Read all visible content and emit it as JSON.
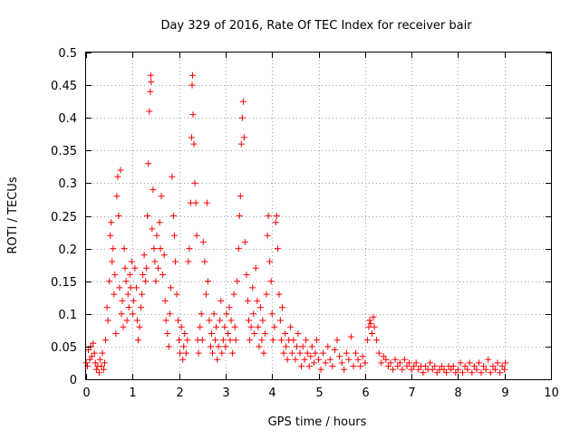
{
  "chart_data": {
    "type": "scatter",
    "title": "Day 329 of 2016, Rate Of TEC Index for receiver bair",
    "xlabel": "GPS time / hours",
    "ylabel": "ROTI / TECUs",
    "xlim": [
      0,
      10
    ],
    "ylim": [
      0,
      0.5
    ],
    "xticks": [
      0,
      1,
      2,
      3,
      4,
      5,
      6,
      7,
      8,
      9,
      10
    ],
    "yticks": [
      0,
      0.05,
      0.1,
      0.15,
      0.2,
      0.25,
      0.3,
      0.35,
      0.4,
      0.45,
      0.5
    ],
    "xtick_labels": [
      "0",
      "1",
      "2",
      "3",
      "4",
      "5",
      "6",
      "7",
      "8",
      "9",
      "10"
    ],
    "ytick_labels": [
      "0",
      "0.05",
      "0.1",
      "0.15",
      "0.2",
      "0.25",
      "0.3",
      "0.35",
      "0.4",
      "0.45",
      "0.5"
    ],
    "grid": true,
    "marker": "plus",
    "series": [
      {
        "name": "ROTI",
        "color": "#ff0000",
        "points": [
          [
            0.0,
            0.025
          ],
          [
            0.03,
            0.02
          ],
          [
            0.05,
            0.045
          ],
          [
            0.08,
            0.03
          ],
          [
            0.1,
            0.05
          ],
          [
            0.12,
            0.035
          ],
          [
            0.15,
            0.055
          ],
          [
            0.18,
            0.04
          ],
          [
            0.2,
            0.025
          ],
          [
            0.22,
            0.015
          ],
          [
            0.25,
            0.02
          ],
          [
            0.28,
            0.01
          ],
          [
            0.3,
            0.03
          ],
          [
            0.33,
            0.02
          ],
          [
            0.35,
            0.04
          ],
          [
            0.38,
            0.015
          ],
          [
            0.4,
            0.025
          ],
          [
            0.42,
            0.06
          ],
          [
            0.45,
            0.11
          ],
          [
            0.47,
            0.09
          ],
          [
            0.5,
            0.15
          ],
          [
            0.52,
            0.22
          ],
          [
            0.54,
            0.24
          ],
          [
            0.56,
            0.18
          ],
          [
            0.58,
            0.2
          ],
          [
            0.6,
            0.13
          ],
          [
            0.62,
            0.16
          ],
          [
            0.64,
            0.07
          ],
          [
            0.66,
            0.28
          ],
          [
            0.68,
            0.31
          ],
          [
            0.7,
            0.25
          ],
          [
            0.72,
            0.14
          ],
          [
            0.74,
            0.32
          ],
          [
            0.76,
            0.1
          ],
          [
            0.78,
            0.12
          ],
          [
            0.8,
            0.08
          ],
          [
            0.82,
            0.2
          ],
          [
            0.84,
            0.17
          ],
          [
            0.86,
            0.15
          ],
          [
            0.88,
            0.09
          ],
          [
            0.9,
            0.13
          ],
          [
            0.92,
            0.11
          ],
          [
            0.94,
            0.16
          ],
          [
            0.96,
            0.14
          ],
          [
            0.98,
            0.18
          ],
          [
            1.0,
            0.1
          ],
          [
            1.02,
            0.12
          ],
          [
            1.05,
            0.17
          ],
          [
            1.08,
            0.14
          ],
          [
            1.1,
            0.09
          ],
          [
            1.12,
            0.06
          ],
          [
            1.15,
            0.08
          ],
          [
            1.18,
            0.11
          ],
          [
            1.2,
            0.13
          ],
          [
            1.22,
            0.16
          ],
          [
            1.25,
            0.19
          ],
          [
            1.28,
            0.15
          ],
          [
            1.3,
            0.17
          ],
          [
            1.32,
            0.25
          ],
          [
            1.34,
            0.33
          ],
          [
            1.36,
            0.41
          ],
          [
            1.38,
            0.44
          ],
          [
            1.39,
            0.465
          ],
          [
            1.4,
            0.455
          ],
          [
            1.42,
            0.23
          ],
          [
            1.44,
            0.29
          ],
          [
            1.46,
            0.2
          ],
          [
            1.48,
            0.18
          ],
          [
            1.5,
            0.15
          ],
          [
            1.52,
            0.22
          ],
          [
            1.55,
            0.17
          ],
          [
            1.58,
            0.24
          ],
          [
            1.6,
            0.2
          ],
          [
            1.62,
            0.28
          ],
          [
            1.65,
            0.16
          ],
          [
            1.68,
            0.19
          ],
          [
            1.7,
            0.12
          ],
          [
            1.72,
            0.09
          ],
          [
            1.75,
            0.07
          ],
          [
            1.78,
            0.05
          ],
          [
            1.8,
            0.1
          ],
          [
            1.82,
            0.14
          ],
          [
            1.85,
            0.31
          ],
          [
            1.88,
            0.25
          ],
          [
            1.9,
            0.22
          ],
          [
            1.92,
            0.18
          ],
          [
            1.95,
            0.13
          ],
          [
            1.98,
            0.09
          ],
          [
            2.0,
            0.06
          ],
          [
            2.02,
            0.04
          ],
          [
            2.05,
            0.08
          ],
          [
            2.08,
            0.03
          ],
          [
            2.1,
            0.05
          ],
          [
            2.12,
            0.07
          ],
          [
            2.15,
            0.04
          ],
          [
            2.18,
            0.06
          ],
          [
            2.2,
            0.18
          ],
          [
            2.22,
            0.2
          ],
          [
            2.25,
            0.27
          ],
          [
            2.27,
            0.37
          ],
          [
            2.28,
            0.45
          ],
          [
            2.29,
            0.465
          ],
          [
            2.3,
            0.405
          ],
          [
            2.32,
            0.36
          ],
          [
            2.34,
            0.3
          ],
          [
            2.36,
            0.27
          ],
          [
            2.38,
            0.22
          ],
          [
            2.4,
            0.06
          ],
          [
            2.42,
            0.04
          ],
          [
            2.45,
            0.08
          ],
          [
            2.48,
            0.1
          ],
          [
            2.5,
            0.06
          ],
          [
            2.52,
            0.21
          ],
          [
            2.55,
            0.18
          ],
          [
            2.58,
            0.13
          ],
          [
            2.6,
            0.27
          ],
          [
            2.62,
            0.15
          ],
          [
            2.65,
            0.09
          ],
          [
            2.68,
            0.05
          ],
          [
            2.7,
            0.07
          ],
          [
            2.72,
            0.04
          ],
          [
            2.75,
            0.1
          ],
          [
            2.78,
            0.06
          ],
          [
            2.8,
            0.08
          ],
          [
            2.82,
            0.03
          ],
          [
            2.85,
            0.05
          ],
          [
            2.88,
            0.09
          ],
          [
            2.9,
            0.12
          ],
          [
            2.92,
            0.04
          ],
          [
            2.95,
            0.06
          ],
          [
            2.98,
            0.08
          ],
          [
            3.0,
            0.05
          ],
          [
            3.02,
            0.1
          ],
          [
            3.05,
            0.07
          ],
          [
            3.08,
            0.11
          ],
          [
            3.1,
            0.06
          ],
          [
            3.12,
            0.09
          ],
          [
            3.15,
            0.04
          ],
          [
            3.18,
            0.13
          ],
          [
            3.2,
            0.08
          ],
          [
            3.22,
            0.06
          ],
          [
            3.25,
            0.15
          ],
          [
            3.28,
            0.2
          ],
          [
            3.3,
            0.25
          ],
          [
            3.32,
            0.28
          ],
          [
            3.34,
            0.36
          ],
          [
            3.36,
            0.4
          ],
          [
            3.38,
            0.425
          ],
          [
            3.4,
            0.37
          ],
          [
            3.42,
            0.21
          ],
          [
            3.45,
            0.16
          ],
          [
            3.48,
            0.12
          ],
          [
            3.5,
            0.09
          ],
          [
            3.52,
            0.06
          ],
          [
            3.55,
            0.08
          ],
          [
            3.58,
            0.14
          ],
          [
            3.6,
            0.1
          ],
          [
            3.62,
            0.07
          ],
          [
            3.65,
            0.17
          ],
          [
            3.68,
            0.12
          ],
          [
            3.7,
            0.08
          ],
          [
            3.72,
            0.05
          ],
          [
            3.75,
            0.11
          ],
          [
            3.78,
            0.06
          ],
          [
            3.8,
            0.09
          ],
          [
            3.82,
            0.04
          ],
          [
            3.85,
            0.07
          ],
          [
            3.88,
            0.13
          ],
          [
            3.9,
            0.22
          ],
          [
            3.92,
            0.25
          ],
          [
            3.95,
            0.18
          ],
          [
            3.98,
            0.15
          ],
          [
            4.0,
            0.1
          ],
          [
            4.02,
            0.06
          ],
          [
            4.05,
            0.08
          ],
          [
            4.08,
            0.24
          ],
          [
            4.1,
            0.25
          ],
          [
            4.12,
            0.2
          ],
          [
            4.15,
            0.13
          ],
          [
            4.18,
            0.09
          ],
          [
            4.2,
            0.06
          ],
          [
            4.22,
            0.11
          ],
          [
            4.25,
            0.04
          ],
          [
            4.28,
            0.07
          ],
          [
            4.3,
            0.05
          ],
          [
            4.33,
            0.03
          ],
          [
            4.36,
            0.06
          ],
          [
            4.4,
            0.08
          ],
          [
            4.43,
            0.04
          ],
          [
            4.46,
            0.06
          ],
          [
            4.5,
            0.03
          ],
          [
            4.53,
            0.05
          ],
          [
            4.56,
            0.07
          ],
          [
            4.6,
            0.04
          ],
          [
            4.63,
            0.02
          ],
          [
            4.66,
            0.05
          ],
          [
            4.7,
            0.03
          ],
          [
            4.73,
            0.06
          ],
          [
            4.76,
            0.04
          ],
          [
            4.8,
            0.02
          ],
          [
            4.83,
            0.035
          ],
          [
            4.86,
            0.05
          ],
          [
            4.9,
            0.025
          ],
          [
            4.93,
            0.04
          ],
          [
            4.96,
            0.06
          ],
          [
            5.0,
            0.03
          ],
          [
            5.05,
            0.015
          ],
          [
            5.1,
            0.04
          ],
          [
            5.15,
            0.025
          ],
          [
            5.2,
            0.05
          ],
          [
            5.25,
            0.03
          ],
          [
            5.3,
            0.02
          ],
          [
            5.35,
            0.045
          ],
          [
            5.4,
            0.06
          ],
          [
            5.45,
            0.035
          ],
          [
            5.5,
            0.025
          ],
          [
            5.55,
            0.015
          ],
          [
            5.6,
            0.04
          ],
          [
            5.65,
            0.03
          ],
          [
            5.7,
            0.065
          ],
          [
            5.75,
            0.02
          ],
          [
            5.8,
            0.04
          ],
          [
            5.85,
            0.03
          ],
          [
            5.9,
            0.02
          ],
          [
            5.95,
            0.035
          ],
          [
            6.0,
            0.025
          ],
          [
            6.05,
            0.06
          ],
          [
            6.08,
            0.08
          ],
          [
            6.1,
            0.09
          ],
          [
            6.12,
            0.085
          ],
          [
            6.15,
            0.07
          ],
          [
            6.18,
            0.095
          ],
          [
            6.2,
            0.08
          ],
          [
            6.25,
            0.06
          ],
          [
            6.3,
            0.04
          ],
          [
            6.35,
            0.025
          ],
          [
            6.4,
            0.035
          ],
          [
            6.45,
            0.03
          ],
          [
            6.5,
            0.02
          ],
          [
            6.55,
            0.025
          ],
          [
            6.6,
            0.015
          ],
          [
            6.65,
            0.03
          ],
          [
            6.7,
            0.02
          ],
          [
            6.75,
            0.025
          ],
          [
            6.8,
            0.015
          ],
          [
            6.85,
            0.03
          ],
          [
            6.9,
            0.02
          ],
          [
            6.95,
            0.025
          ],
          [
            7.0,
            0.015
          ],
          [
            7.05,
            0.02
          ],
          [
            7.1,
            0.025
          ],
          [
            7.15,
            0.015
          ],
          [
            7.2,
            0.02
          ],
          [
            7.25,
            0.01
          ],
          [
            7.3,
            0.02
          ],
          [
            7.35,
            0.015
          ],
          [
            7.4,
            0.025
          ],
          [
            7.45,
            0.015
          ],
          [
            7.5,
            0.02
          ],
          [
            7.55,
            0.01
          ],
          [
            7.6,
            0.015
          ],
          [
            7.65,
            0.02
          ],
          [
            7.7,
            0.015
          ],
          [
            7.75,
            0.01
          ],
          [
            7.8,
            0.02
          ],
          [
            7.85,
            0.015
          ],
          [
            7.9,
            0.02
          ],
          [
            7.95,
            0.01
          ],
          [
            8.0,
            0.015
          ],
          [
            8.05,
            0.025
          ],
          [
            8.1,
            0.01
          ],
          [
            8.15,
            0.02
          ],
          [
            8.2,
            0.015
          ],
          [
            8.25,
            0.025
          ],
          [
            8.3,
            0.01
          ],
          [
            8.35,
            0.02
          ],
          [
            8.4,
            0.015
          ],
          [
            8.45,
            0.025
          ],
          [
            8.5,
            0.01
          ],
          [
            8.55,
            0.02
          ],
          [
            8.6,
            0.015
          ],
          [
            8.65,
            0.03
          ],
          [
            8.7,
            0.01
          ],
          [
            8.75,
            0.02
          ],
          [
            8.8,
            0.015
          ],
          [
            8.85,
            0.025
          ],
          [
            8.9,
            0.01
          ],
          [
            8.95,
            0.02
          ],
          [
            9.0,
            0.015
          ],
          [
            9.02,
            0.025
          ]
        ]
      }
    ]
  }
}
